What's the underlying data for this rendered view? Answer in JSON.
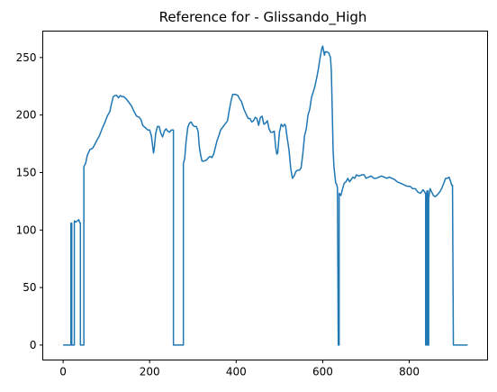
{
  "chart_data": {
    "type": "line",
    "title": "Reference for - Glissando_High",
    "xlabel": "",
    "ylabel": "",
    "xlim": [
      -47,
      981
    ],
    "ylim": [
      -13,
      273
    ],
    "x_ticks": [
      0,
      200,
      400,
      600,
      800
    ],
    "y_ticks": [
      0,
      50,
      100,
      150,
      200,
      250
    ],
    "grid": false,
    "line_color": "#1f77b4",
    "series": [
      {
        "points": [
          [
            0,
            0
          ],
          [
            18,
            0
          ],
          [
            18,
            106
          ],
          [
            20,
            106
          ],
          [
            20,
            0
          ],
          [
            26,
            0
          ],
          [
            26,
            108
          ],
          [
            29,
            107
          ],
          [
            33,
            108
          ],
          [
            36,
            109
          ],
          [
            39,
            106
          ],
          [
            40,
            106
          ],
          [
            40,
            0
          ],
          [
            45,
            0
          ],
          [
            48,
            0
          ],
          [
            48,
            155
          ],
          [
            52,
            158
          ],
          [
            56,
            165
          ],
          [
            62,
            170
          ],
          [
            68,
            171
          ],
          [
            74,
            175
          ],
          [
            78,
            178
          ],
          [
            84,
            182
          ],
          [
            90,
            188
          ],
          [
            96,
            193
          ],
          [
            102,
            199
          ],
          [
            108,
            203
          ],
          [
            112,
            210
          ],
          [
            116,
            216
          ],
          [
            120,
            217
          ],
          [
            124,
            217
          ],
          [
            128,
            215
          ],
          [
            132,
            217
          ],
          [
            136,
            216
          ],
          [
            140,
            216
          ],
          [
            146,
            214
          ],
          [
            152,
            211
          ],
          [
            158,
            208
          ],
          [
            164,
            203
          ],
          [
            170,
            199
          ],
          [
            176,
            198
          ],
          [
            180,
            196
          ],
          [
            184,
            191
          ],
          [
            190,
            189
          ],
          [
            196,
            187
          ],
          [
            200,
            187
          ],
          [
            204,
            182
          ],
          [
            207,
            173
          ],
          [
            209,
            167
          ],
          [
            211,
            172
          ],
          [
            214,
            184
          ],
          [
            218,
            190
          ],
          [
            222,
            190
          ],
          [
            226,
            184
          ],
          [
            230,
            181
          ],
          [
            234,
            186
          ],
          [
            238,
            188
          ],
          [
            242,
            186
          ],
          [
            246,
            185
          ],
          [
            250,
            187
          ],
          [
            253,
            187
          ],
          [
            255,
            187
          ],
          [
            255,
            0
          ],
          [
            278,
            0
          ],
          [
            278,
            158
          ],
          [
            281,
            162
          ],
          [
            284,
            176
          ],
          [
            288,
            189
          ],
          [
            292,
            193
          ],
          [
            296,
            194
          ],
          [
            300,
            191
          ],
          [
            304,
            190
          ],
          [
            308,
            190
          ],
          [
            312,
            186
          ],
          [
            315,
            172
          ],
          [
            318,
            165
          ],
          [
            321,
            160
          ],
          [
            326,
            160
          ],
          [
            332,
            161
          ],
          [
            336,
            163
          ],
          [
            340,
            164
          ],
          [
            344,
            163
          ],
          [
            348,
            166
          ],
          [
            352,
            172
          ],
          [
            356,
            178
          ],
          [
            360,
            182
          ],
          [
            364,
            187
          ],
          [
            370,
            190
          ],
          [
            376,
            193
          ],
          [
            380,
            195
          ],
          [
            384,
            204
          ],
          [
            388,
            212
          ],
          [
            392,
            218
          ],
          [
            398,
            218
          ],
          [
            404,
            217
          ],
          [
            408,
            214
          ],
          [
            412,
            212
          ],
          [
            418,
            205
          ],
          [
            424,
            200
          ],
          [
            428,
            197
          ],
          [
            432,
            197
          ],
          [
            436,
            194
          ],
          [
            440,
            195
          ],
          [
            444,
            198
          ],
          [
            448,
            197
          ],
          [
            452,
            191
          ],
          [
            456,
            198
          ],
          [
            460,
            199
          ],
          [
            464,
            192
          ],
          [
            468,
            193
          ],
          [
            472,
            195
          ],
          [
            476,
            188
          ],
          [
            480,
            185
          ],
          [
            484,
            185
          ],
          [
            488,
            186
          ],
          [
            491,
            173
          ],
          [
            494,
            166
          ],
          [
            496,
            167
          ],
          [
            500,
            185
          ],
          [
            504,
            192
          ],
          [
            508,
            190
          ],
          [
            512,
            192
          ],
          [
            514,
            191
          ],
          [
            518,
            180
          ],
          [
            522,
            170
          ],
          [
            526,
            154
          ],
          [
            530,
            145
          ],
          [
            534,
            147
          ],
          [
            538,
            151
          ],
          [
            542,
            152
          ],
          [
            546,
            152
          ],
          [
            550,
            154
          ],
          [
            554,
            166
          ],
          [
            558,
            182
          ],
          [
            562,
            188
          ],
          [
            566,
            200
          ],
          [
            570,
            205
          ],
          [
            574,
            215
          ],
          [
            578,
            220
          ],
          [
            582,
            225
          ],
          [
            586,
            232
          ],
          [
            590,
            240
          ],
          [
            594,
            250
          ],
          [
            598,
            258
          ],
          [
            600,
            260
          ],
          [
            602,
            256
          ],
          [
            604,
            252
          ],
          [
            606,
            255
          ],
          [
            610,
            255
          ],
          [
            614,
            254
          ],
          [
            618,
            250
          ],
          [
            620,
            238
          ],
          [
            622,
            205
          ],
          [
            624,
            170
          ],
          [
            626,
            155
          ],
          [
            628,
            148
          ],
          [
            630,
            141
          ],
          [
            632,
            140
          ],
          [
            634,
            137
          ],
          [
            636,
            0
          ],
          [
            638,
            0
          ],
          [
            638,
            132
          ],
          [
            642,
            130
          ],
          [
            646,
            136
          ],
          [
            650,
            141
          ],
          [
            654,
            142
          ],
          [
            658,
            145
          ],
          [
            662,
            142
          ],
          [
            666,
            144
          ],
          [
            670,
            146
          ],
          [
            674,
            145
          ],
          [
            678,
            148
          ],
          [
            684,
            147
          ],
          [
            690,
            148
          ],
          [
            696,
            148
          ],
          [
            700,
            145
          ],
          [
            706,
            146
          ],
          [
            712,
            147
          ],
          [
            718,
            145
          ],
          [
            724,
            145
          ],
          [
            730,
            146
          ],
          [
            736,
            147
          ],
          [
            742,
            146
          ],
          [
            748,
            145
          ],
          [
            754,
            146
          ],
          [
            760,
            145
          ],
          [
            766,
            144
          ],
          [
            772,
            142
          ],
          [
            778,
            141
          ],
          [
            784,
            140
          ],
          [
            790,
            139
          ],
          [
            796,
            138
          ],
          [
            802,
            138
          ],
          [
            808,
            136
          ],
          [
            814,
            136
          ],
          [
            820,
            133
          ],
          [
            826,
            132
          ],
          [
            832,
            135
          ],
          [
            836,
            133
          ],
          [
            838,
            131
          ],
          [
            838,
            0
          ],
          [
            840,
            0
          ],
          [
            840,
            131
          ],
          [
            841,
            134
          ],
          [
            843,
            134
          ],
          [
            843,
            0
          ],
          [
            845,
            0
          ],
          [
            845,
            128
          ],
          [
            846,
            130
          ],
          [
            848,
            136
          ],
          [
            852,
            133
          ],
          [
            856,
            130
          ],
          [
            860,
            129
          ],
          [
            866,
            131
          ],
          [
            872,
            134
          ],
          [
            876,
            137
          ],
          [
            880,
            141
          ],
          [
            884,
            145
          ],
          [
            888,
            145
          ],
          [
            892,
            146
          ],
          [
            896,
            142
          ],
          [
            898,
            139
          ],
          [
            900,
            139
          ],
          [
            902,
            0
          ],
          [
            906,
            0
          ],
          [
            935,
            0
          ]
        ]
      }
    ]
  }
}
